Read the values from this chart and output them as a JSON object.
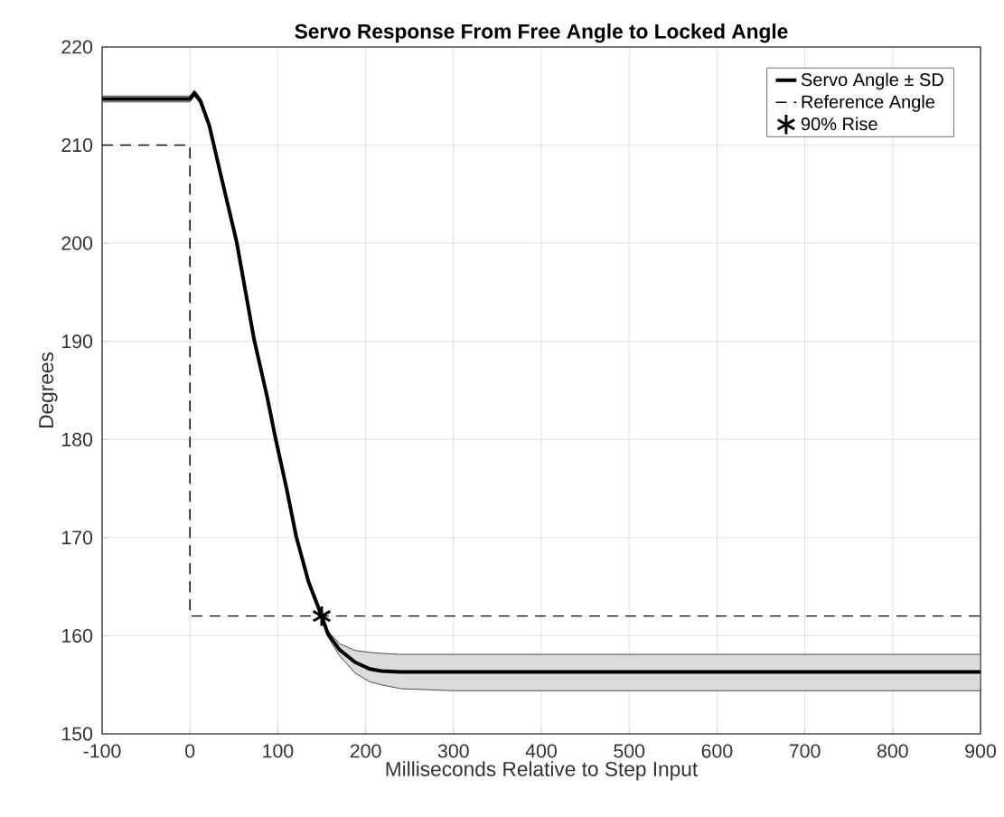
{
  "chart_data": {
    "type": "line",
    "title": "Servo Response From Free Angle to Locked Angle",
    "xlabel": "Milliseconds Relative to Step Input",
    "ylabel": "Degrees",
    "xlim": [
      -100,
      900
    ],
    "ylim": [
      150,
      220
    ],
    "xticks": [
      -100,
      0,
      100,
      200,
      300,
      400,
      500,
      600,
      700,
      800,
      900
    ],
    "yticks": [
      150,
      160,
      170,
      180,
      190,
      200,
      210,
      220
    ],
    "grid": true,
    "legend": "top right",
    "series": [
      {
        "name": "Servo Angle ± SD",
        "color": "#000000",
        "line_style": "solid",
        "marker": "none",
        "x": [
          -100,
          0,
          5,
          12,
          22,
          35,
          53,
          73,
          88,
          97,
          110,
          121,
          135,
          150,
          157,
          170,
          188,
          205,
          218,
          240,
          300,
          400,
          500,
          600,
          700,
          800,
          900
        ],
        "values": [
          214.7,
          214.7,
          215.3,
          214.5,
          212,
          207,
          200.2,
          190.2,
          184.3,
          180.3,
          175,
          170.1,
          165.5,
          162,
          160.2,
          158.6,
          157.3,
          156.6,
          156.4,
          156.3,
          156.3,
          156.3,
          156.3,
          156.3,
          156.3,
          156.3,
          156.3
        ],
        "lower": [
          214.4,
          214.4,
          215,
          214.2,
          211.7,
          206.7,
          199.9,
          189.9,
          184,
          180,
          174.7,
          169.8,
          165.2,
          161.7,
          159.9,
          158,
          156.2,
          155.3,
          155,
          154.6,
          154.4,
          154.4,
          154.4,
          154.4,
          154.4,
          154.4,
          154.4
        ],
        "upper": [
          215,
          215,
          215.6,
          214.8,
          212.3,
          207.3,
          200.5,
          190.5,
          184.6,
          180.6,
          175.3,
          170.4,
          165.8,
          162.3,
          160.5,
          159.2,
          158.5,
          158.3,
          158.2,
          158.1,
          158.1,
          158.1,
          158.1,
          158.1,
          158.1,
          158.1,
          158.1
        ]
      },
      {
        "name": "Reference Angle",
        "color": "#000000",
        "line_style": "dashed",
        "marker": "none",
        "x": [
          -100,
          0,
          0,
          900
        ],
        "values": [
          210,
          210,
          162,
          162
        ]
      },
      {
        "name": "90% Rise",
        "type": "scatter",
        "color": "#000000",
        "marker": "cross",
        "x": [
          150
        ],
        "values": [
          162
        ]
      }
    ]
  }
}
